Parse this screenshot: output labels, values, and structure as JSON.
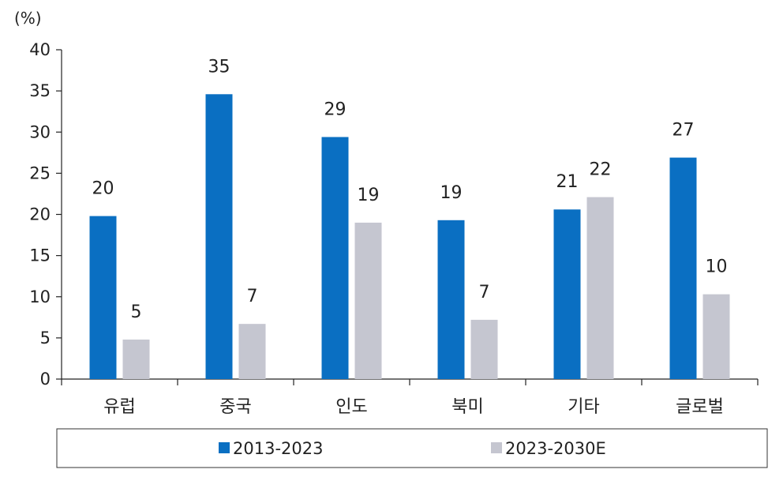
{
  "chart_data": {
    "type": "bar",
    "unit_label": "(%)",
    "categories": [
      "유럽",
      "중국",
      "인도",
      "북미",
      "기타",
      "글로벌"
    ],
    "series": [
      {
        "name": "2013-2023",
        "color": "#0a6fc2",
        "values": [
          19.8,
          34.6,
          29.4,
          19.3,
          20.6,
          26.9
        ],
        "labels": [
          "20",
          "35",
          "29",
          "19",
          "21",
          "27"
        ]
      },
      {
        "name": "2023-2030E",
        "color": "#c5c6d0",
        "values": [
          4.8,
          6.7,
          19.0,
          7.2,
          22.1,
          10.3
        ],
        "labels": [
          "5",
          "7",
          "19",
          "7",
          "22",
          "10"
        ]
      }
    ],
    "ylim": [
      0,
      40
    ],
    "yticks": [
      "0",
      "5",
      "10",
      "15",
      "20",
      "25",
      "30",
      "35",
      "40"
    ],
    "grid": false,
    "legend_position": "bottom"
  }
}
